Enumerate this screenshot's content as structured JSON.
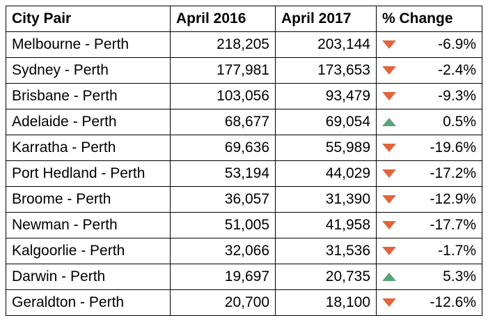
{
  "table": {
    "headers": [
      "City Pair",
      "April 2016",
      "April 2017",
      "% Change"
    ],
    "rows": [
      {
        "pair": "Melbourne - Perth",
        "y2016": "218,205",
        "y2017": "203,144",
        "change": "-6.9%",
        "trend": "down"
      },
      {
        "pair": "Sydney - Perth",
        "y2016": "177,981",
        "y2017": "173,653",
        "change": "-2.4%",
        "trend": "down"
      },
      {
        "pair": "Brisbane - Perth",
        "y2016": "103,056",
        "y2017": "93,479",
        "change": "-9.3%",
        "trend": "down"
      },
      {
        "pair": "Adelaide - Perth",
        "y2016": "68,677",
        "y2017": "69,054",
        "change": "0.5%",
        "trend": "up"
      },
      {
        "pair": "Karratha - Perth",
        "y2016": "69,636",
        "y2017": "55,989",
        "change": "-19.6%",
        "trend": "down"
      },
      {
        "pair": "Port Hedland - Perth",
        "y2016": "53,194",
        "y2017": "44,029",
        "change": "-17.2%",
        "trend": "down"
      },
      {
        "pair": "Broome - Perth",
        "y2016": "36,057",
        "y2017": "31,390",
        "change": "-12.9%",
        "trend": "down"
      },
      {
        "pair": "Newman - Perth",
        "y2016": "51,005",
        "y2017": "41,958",
        "change": "-17.7%",
        "trend": "down"
      },
      {
        "pair": "Kalgoorlie - Perth",
        "y2016": "32,066",
        "y2017": "31,536",
        "change": "-1.7%",
        "trend": "down"
      },
      {
        "pair": "Darwin - Perth",
        "y2016": "19,697",
        "y2017": "20,735",
        "change": "5.3%",
        "trend": "up"
      },
      {
        "pair": "Geraldton - Perth",
        "y2016": "20,700",
        "y2017": "18,100",
        "change": "-12.6%",
        "trend": "down"
      }
    ]
  },
  "colors": {
    "down": "#E2643D",
    "up": "#5BA37C"
  },
  "icons": {
    "down": "triangle-down-icon",
    "up": "triangle-up-icon"
  }
}
